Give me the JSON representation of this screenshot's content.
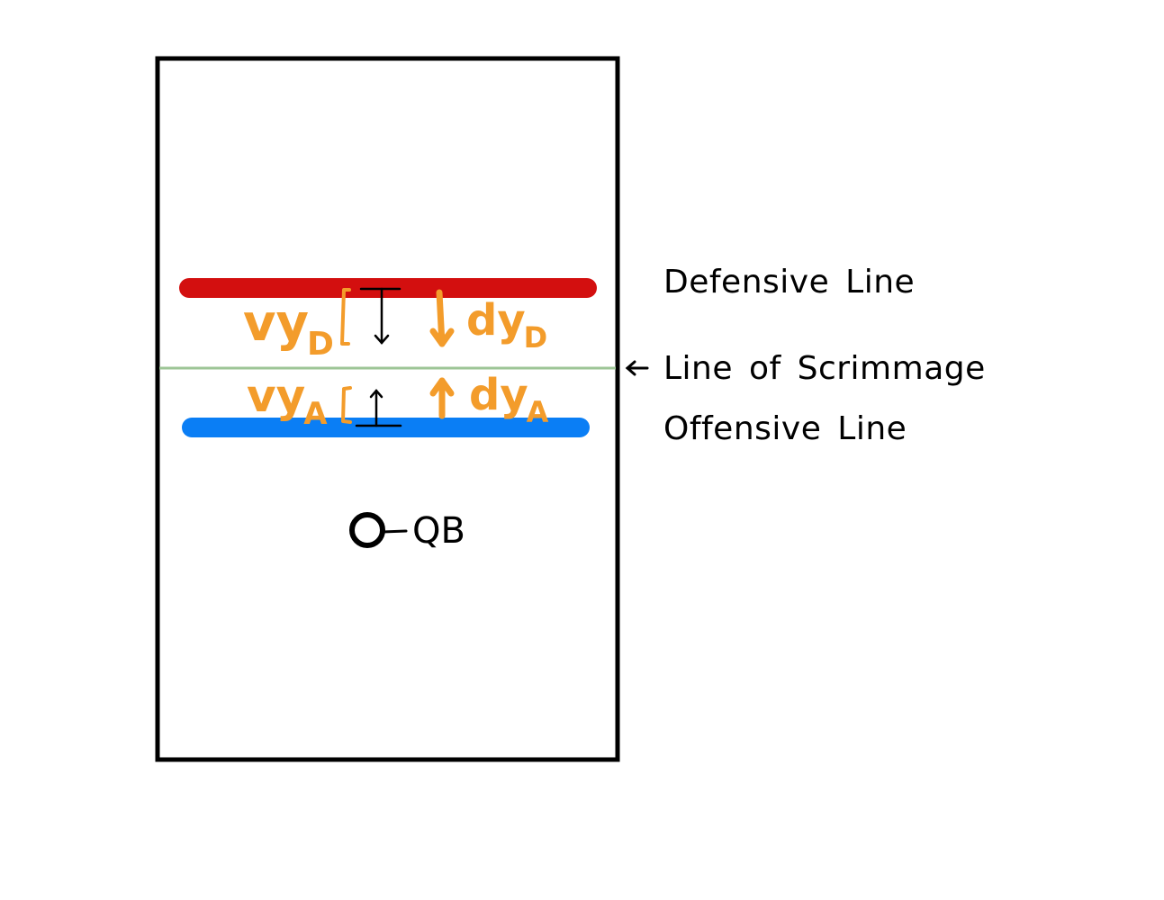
{
  "labels": {
    "defensive_line": "Defensive Line",
    "line_of_scrimmage": "Line of Scrimmage",
    "offensive_line": "Offensive Line",
    "quarterback": "QB"
  },
  "annotations": {
    "defense_velocity": {
      "main": "vy",
      "sub": "D"
    },
    "defense_displacement": {
      "main": "dy",
      "sub": "D"
    },
    "offense_velocity": {
      "main": "vy",
      "sub": "A"
    },
    "offense_displacement": {
      "main": "dy",
      "sub": "A"
    }
  },
  "colors": {
    "defensive_line": "#d30f0f",
    "offensive_line": "#0a7ef5",
    "line_of_scrimmage": "#9dc596",
    "annotation": "#f39c2b",
    "field_border": "#000000"
  }
}
